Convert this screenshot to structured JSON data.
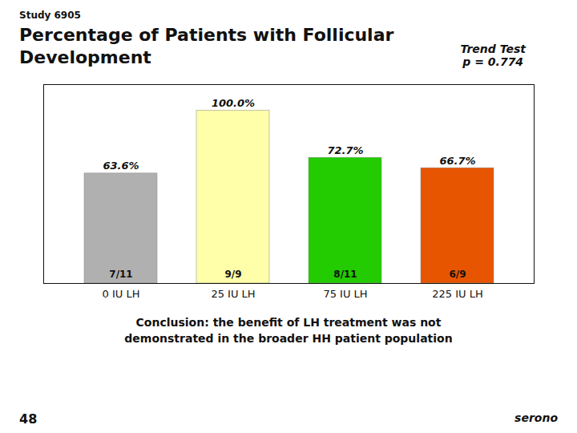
{
  "chart_data": {
    "type": "bar",
    "title": "Percentage of Patients with Follicular\nDevelopment",
    "categories": [
      "0 IU LH",
      "25 IU LH",
      "75 IU LH",
      "225 IU LH"
    ],
    "values": [
      63.6,
      100.0,
      72.7,
      66.7
    ],
    "value_labels": [
      "63.6%",
      "100.0%",
      "72.7%",
      "66.7%"
    ],
    "fraction_labels": [
      "7/11",
      "9/9",
      "8/11",
      "6/9"
    ],
    "colors": [
      "#b0b0b0",
      "#ffffaa",
      "#22cc00",
      "#e85500"
    ],
    "ylim": [
      0,
      115
    ],
    "data_labels": true,
    "tick_labels": "x",
    "annotations": [
      "Study 6905",
      "Trend Test\np = 0.774",
      "Conclusion: the benefit of LH treatment was not\ndemonstrated in the broader HH patient population",
      "48",
      "serono"
    ]
  }
}
